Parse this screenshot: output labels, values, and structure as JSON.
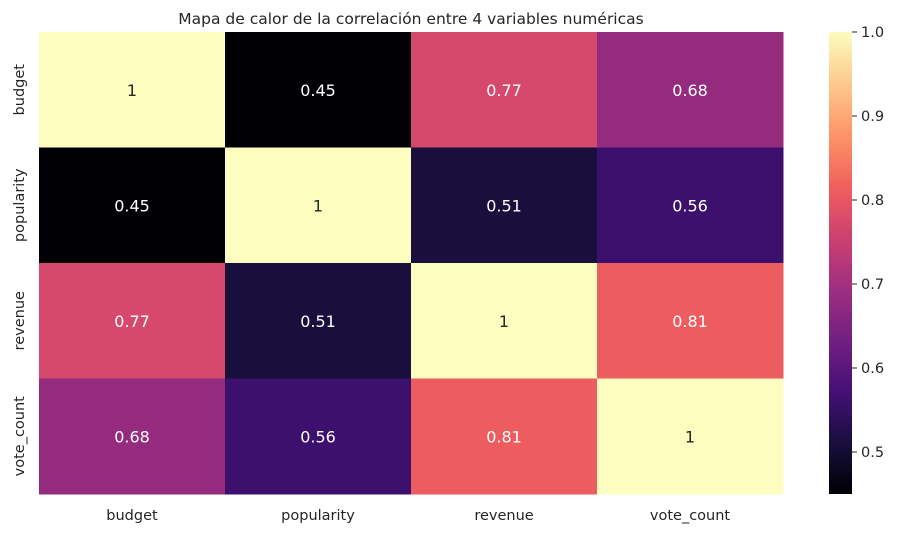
{
  "chart_data": {
    "type": "heatmap",
    "title": "Mapa de calor de la correlación entre 4 variables numéricas",
    "xlabel": "",
    "ylabel": "",
    "x_categories": [
      "budget",
      "popularity",
      "revenue",
      "vote_count"
    ],
    "y_categories": [
      "budget",
      "popularity",
      "revenue",
      "vote_count"
    ],
    "values": [
      [
        1,
        0.45,
        0.77,
        0.68
      ],
      [
        0.45,
        1,
        0.51,
        0.56
      ],
      [
        0.77,
        0.51,
        1,
        0.81
      ],
      [
        0.68,
        0.56,
        0.81,
        1
      ]
    ],
    "cell_labels": [
      [
        "1",
        "0.45",
        "0.77",
        "0.68"
      ],
      [
        "0.45",
        "1",
        "0.51",
        "0.56"
      ],
      [
        "0.77",
        "0.51",
        "1",
        "0.81"
      ],
      [
        "0.68",
        "0.56",
        "0.81",
        "1"
      ]
    ],
    "colormap": "magma",
    "color_range": [
      0.45,
      1.0
    ],
    "colorbar": {
      "ticks": [
        0.5,
        0.6,
        0.7,
        0.8,
        0.9,
        1.0
      ],
      "tick_labels": [
        "0.5",
        "0.6",
        "0.7",
        "0.8",
        "0.9",
        "1.0"
      ],
      "placement": "right"
    },
    "colors": {
      "magma_stops": [
        "#000004",
        "#180f3e",
        "#451077",
        "#721f81",
        "#9f2f7f",
        "#cd4071",
        "#f1605d",
        "#fd9567",
        "#fec98d",
        "#fcfdbf"
      ],
      "light_text": "#ffffff",
      "dark_text": "#262626",
      "tick_color": "#262626"
    }
  }
}
